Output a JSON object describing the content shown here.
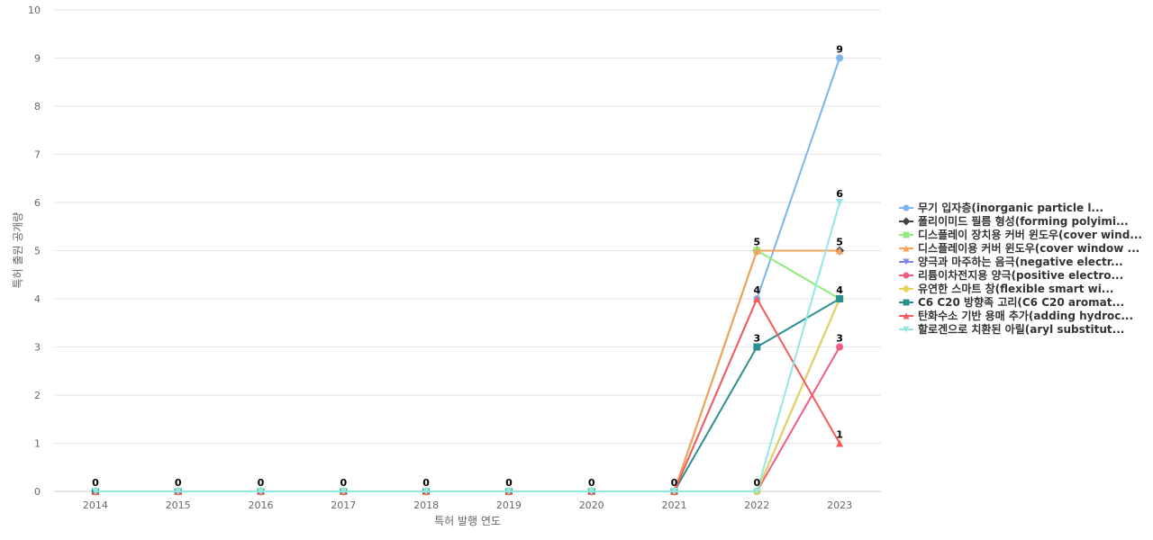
{
  "chart_data": {
    "type": "line",
    "xlabel": "특허 발행 연도",
    "ylabel": "특허 출원 공개량",
    "ylim": [
      0,
      10
    ],
    "grid": true,
    "legend_position": "right",
    "x": [
      "2014",
      "2015",
      "2016",
      "2017",
      "2018",
      "2019",
      "2020",
      "2021",
      "2022",
      "2023"
    ],
    "yticks": [
      0,
      1,
      2,
      3,
      4,
      5,
      6,
      7,
      8,
      9,
      10
    ],
    "series": [
      {
        "name": "무기 입자층(inorganic particle l...",
        "color": "#7cb5ec",
        "marker": "circle",
        "values": [
          0,
          0,
          0,
          0,
          0,
          0,
          0,
          0,
          4,
          9
        ]
      },
      {
        "name": "폴리이미드 필름 형성(forming polyimi...",
        "color": "#434348",
        "marker": "diamond",
        "values": [
          0,
          0,
          0,
          0,
          0,
          0,
          0,
          0,
          5,
          5
        ]
      },
      {
        "name": "디스플레이 장치용 커버 윈도우(cover wind...",
        "color": "#90ed7d",
        "marker": "square",
        "values": [
          0,
          0,
          0,
          0,
          0,
          0,
          0,
          0,
          5,
          4
        ]
      },
      {
        "name": "디스플레이용 커버 윈도우(cover window ...",
        "color": "#f7a35c",
        "marker": "triangle",
        "values": [
          0,
          0,
          0,
          0,
          0,
          0,
          0,
          0,
          5,
          5
        ]
      },
      {
        "name": "양극과 마주하는 음극(negative electr...",
        "color": "#8085e9",
        "marker": "triangle-down",
        "values": [
          0,
          0,
          0,
          0,
          0,
          0,
          0,
          0,
          0,
          4
        ]
      },
      {
        "name": "리튬이차전지용 양극(positive electro...",
        "color": "#f15c80",
        "marker": "circle",
        "values": [
          0,
          0,
          0,
          0,
          0,
          0,
          0,
          0,
          0,
          3
        ]
      },
      {
        "name": "유연한 스마트 창(flexible smart wi...",
        "color": "#e4d354",
        "marker": "diamond",
        "values": [
          0,
          0,
          0,
          0,
          0,
          0,
          0,
          0,
          0,
          4
        ]
      },
      {
        "name": "C6 C20 방향족 고리(C6 C20 aromat...",
        "color": "#2b908f",
        "marker": "square",
        "values": [
          0,
          0,
          0,
          0,
          0,
          0,
          0,
          0,
          3,
          4
        ]
      },
      {
        "name": "탄화수소 기반 용매 추가(adding hydroc...",
        "color": "#f45b5b",
        "marker": "triangle",
        "values": [
          0,
          0,
          0,
          0,
          0,
          0,
          0,
          0,
          4,
          1
        ]
      },
      {
        "name": "할로겐으로 치환된 아릴(aryl substitut...",
        "color": "#91e8e1",
        "marker": "triangle-down",
        "values": [
          0,
          0,
          0,
          0,
          0,
          0,
          0,
          0,
          0,
          6
        ]
      }
    ],
    "data_labels": [
      {
        "x": "2014",
        "value": 0
      },
      {
        "x": "2015",
        "value": 0
      },
      {
        "x": "2016",
        "value": 0
      },
      {
        "x": "2017",
        "value": 0
      },
      {
        "x": "2018",
        "value": 0
      },
      {
        "x": "2019",
        "value": 0
      },
      {
        "x": "2020",
        "value": 0
      },
      {
        "x": "2021",
        "value": 0
      },
      {
        "x": "2022",
        "value": 5
      },
      {
        "x": "2022",
        "value": 4
      },
      {
        "x": "2022",
        "value": 3
      },
      {
        "x": "2022",
        "value": 0
      },
      {
        "x": "2023",
        "value": 9
      },
      {
        "x": "2023",
        "value": 6
      },
      {
        "x": "2023",
        "value": 5
      },
      {
        "x": "2023",
        "value": 4
      },
      {
        "x": "2023",
        "value": 3
      },
      {
        "x": "2023",
        "value": 1
      }
    ]
  }
}
